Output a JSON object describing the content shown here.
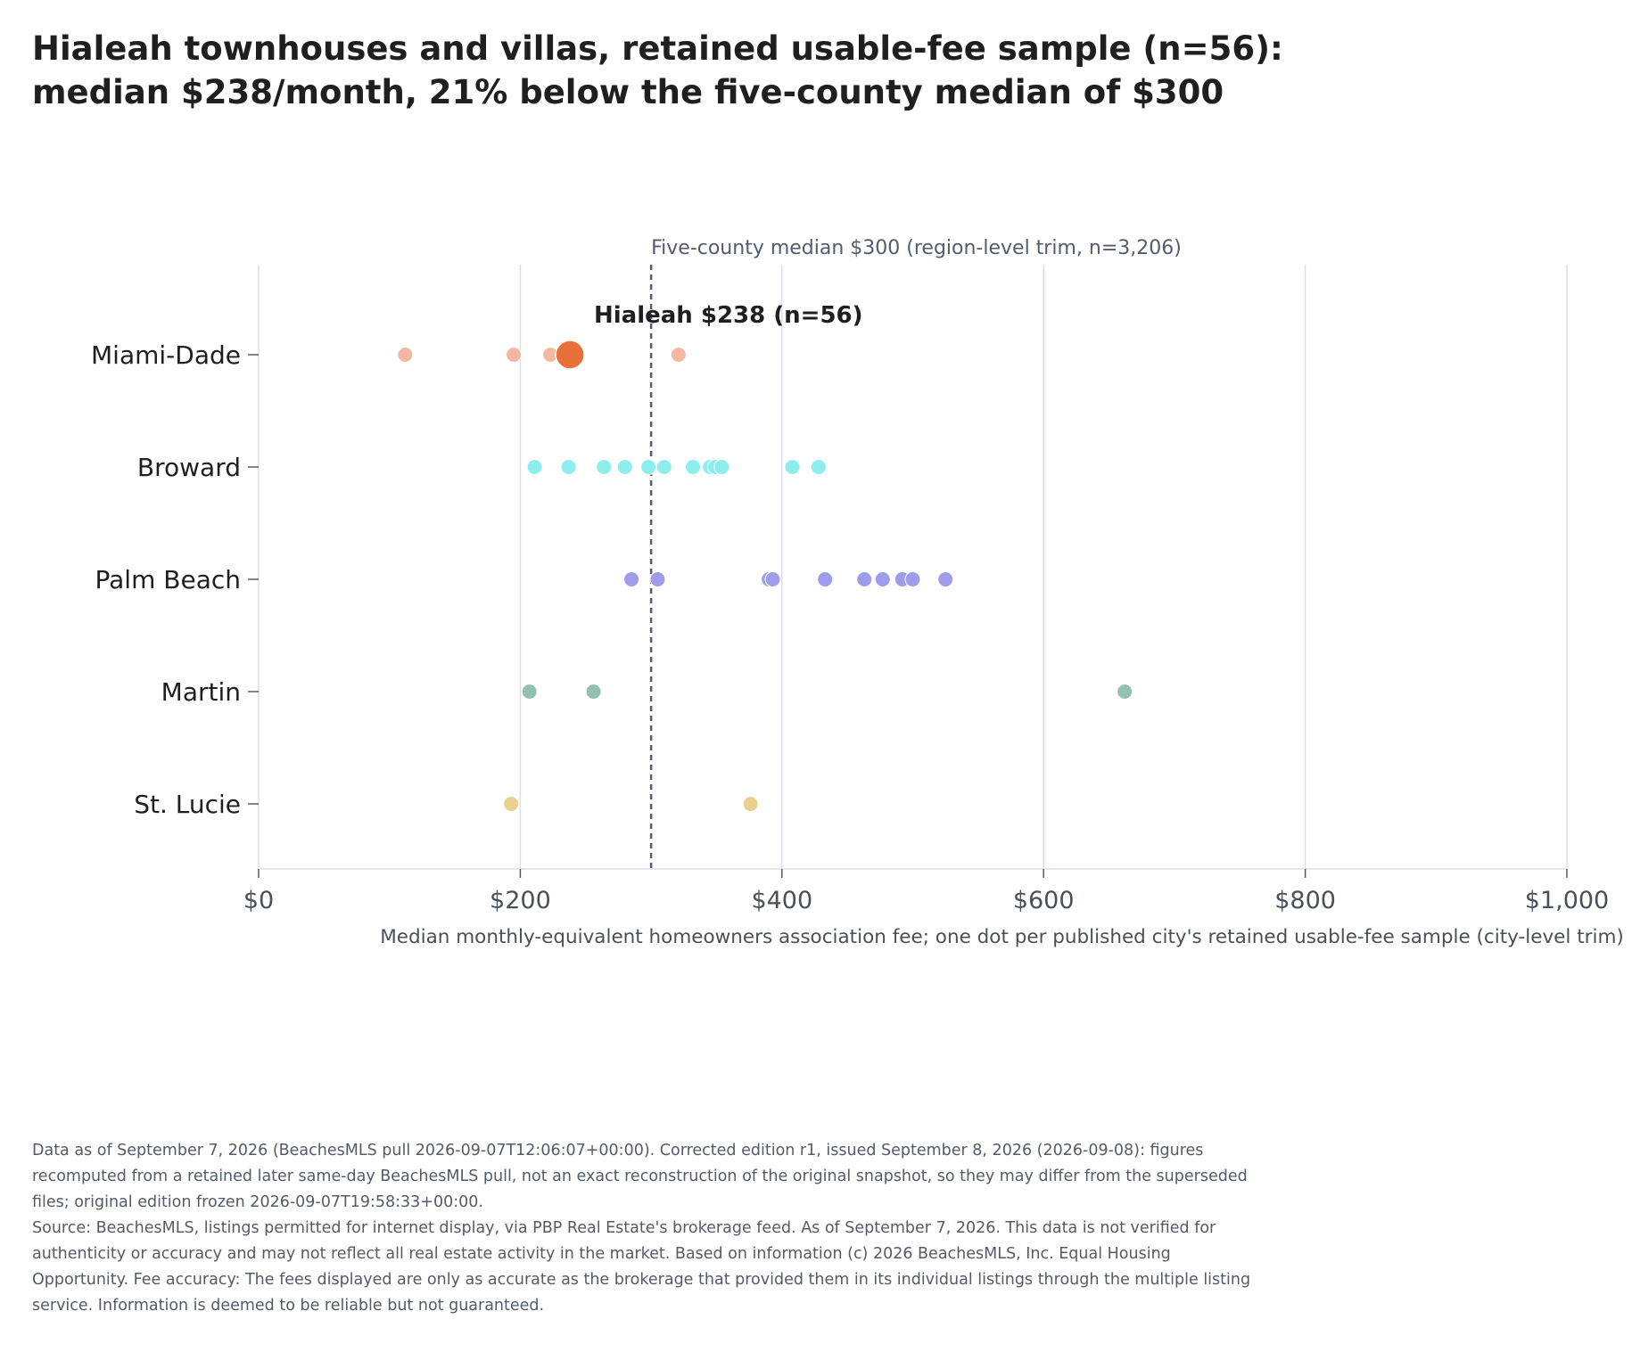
{
  "chart_data": {
    "type": "scatter",
    "title_lines": [
      "Hialeah townhouses and villas, retained usable-fee sample (n=56):",
      "median $238/month, 21% below the five-county median of $300"
    ],
    "xlabel": "Median monthly-equivalent homeowners association fee; one dot per published city's retained usable-fee sample (city-level trim)",
    "xlim": [
      0,
      1000
    ],
    "x_ticks": [
      0,
      200,
      400,
      600,
      800,
      1000
    ],
    "x_tick_labels": [
      "$0",
      "$200",
      "$400",
      "$600",
      "$800",
      "$1,000"
    ],
    "grid": "vertical",
    "categories": [
      "Miami-Dade",
      "Broward",
      "Palm Beach",
      "Martin",
      "St. Lucie"
    ],
    "series": [
      {
        "category": "Miami-Dade",
        "color": "#f4b8a2",
        "values": [
          112,
          195,
          223,
          321
        ]
      },
      {
        "category": "Broward",
        "color": "#8eeeee",
        "values": [
          211,
          237,
          264,
          280,
          298,
          310,
          332,
          345,
          349,
          354,
          408,
          428
        ]
      },
      {
        "category": "Palm Beach",
        "color": "#9f9cec",
        "values": [
          285,
          305,
          390,
          393,
          433,
          463,
          477,
          492,
          500,
          525
        ]
      },
      {
        "category": "Martin",
        "color": "#94c0b2",
        "values": [
          207,
          256,
          662
        ]
      },
      {
        "category": "St. Lucie",
        "color": "#ebcf8f",
        "values": [
          193,
          376
        ]
      }
    ],
    "highlight": {
      "category": "Miami-Dade",
      "value": 238,
      "color": "#e8703a",
      "label": "Hialeah $238 (n=56)"
    },
    "reference_line": {
      "value": 300,
      "label": "Five-county median $300 (region-level trim, n=3,206)",
      "color": "#555b6e"
    }
  },
  "notes": [
    "Data as of September 7, 2026 (BeachesMLS pull 2026-09-07T12:06:07+00:00). Corrected edition r1, issued September 8, 2026 (2026-09-08): figures recomputed from a retained later same-day BeachesMLS pull, not an exact reconstruction of the original snapshot, so they may differ from the superseded files; original edition frozen 2026-09-07T19:58:33+00:00.",
    "Source: BeachesMLS, listings permitted for internet display, via PBP Real Estate's brokerage feed. As of September 7, 2026. This data is not verified for authenticity or accuracy and may not reflect all real estate activity in the market. Based on information (c) 2026 BeachesMLS, Inc. Equal Housing Opportunity. Fee accuracy: The fees displayed are only as accurate as the brokerage that provided them in its individual listings through the multiple listing service. Information is deemed to be reliable but not guaranteed."
  ]
}
